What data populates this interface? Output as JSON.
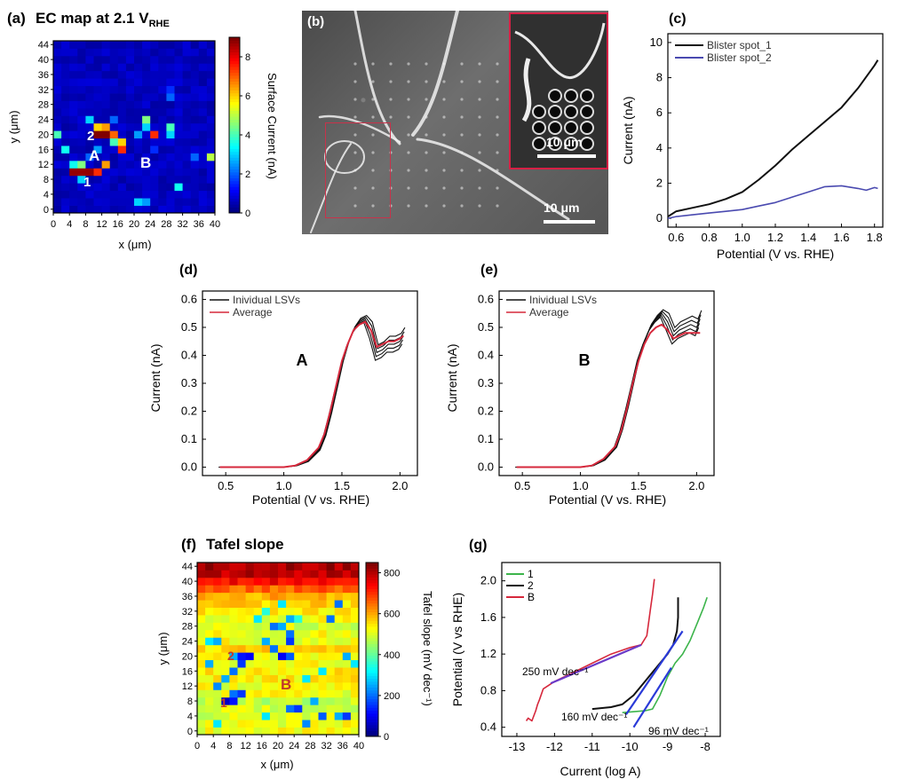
{
  "panels": {
    "a": {
      "letter": "(a)",
      "title": "EC map at 2.1 V",
      "title_sub": "RHE",
      "xlabel": "x (μm)",
      "ylabel": "y (μm)",
      "xticks": [
        "0",
        "4",
        "8",
        "12",
        "16",
        "20",
        "24",
        "28",
        "32",
        "36",
        "40"
      ],
      "yticks": [
        "0",
        "4",
        "8",
        "12",
        "16",
        "20",
        "24",
        "28",
        "32",
        "36",
        "40",
        "44"
      ],
      "colorbar_label": "Surface Current (nA)",
      "colorbar_ticks": [
        "0",
        "2",
        "4",
        "6",
        "8"
      ],
      "annotations": [
        "A",
        "B",
        "1",
        "2"
      ]
    },
    "b": {
      "letter": "(b)",
      "scale_main": "10 μm",
      "scale_inset": "10 μm"
    },
    "c": {
      "letter": "(c)",
      "xlabel": "Potential (V vs. RHE)",
      "ylabel": "Current (nA)",
      "xticks": [
        "0.6",
        "0.8",
        "1.0",
        "1.2",
        "1.4",
        "1.6",
        "1.8"
      ],
      "yticks": [
        "0",
        "2",
        "4",
        "6",
        "8",
        "10"
      ],
      "legend": [
        "Blister spot_1",
        "Blister spot_2"
      ]
    },
    "d": {
      "letter": "(d)",
      "xlabel": "Potential (V vs. RHE)",
      "ylabel": "Current (nA)",
      "xticks": [
        "0.5",
        "1.0",
        "1.5",
        "2.0"
      ],
      "yticks": [
        "0.0",
        "0.1",
        "0.2",
        "0.3",
        "0.4",
        "0.5",
        "0.6"
      ],
      "legend": [
        "Inividual LSVs",
        "Average"
      ],
      "label": "A"
    },
    "e": {
      "letter": "(e)",
      "xlabel": "Potential (V vs. RHE)",
      "ylabel": "Current (nA)",
      "xticks": [
        "0.5",
        "1.0",
        "1.5",
        "2.0"
      ],
      "yticks": [
        "0.0",
        "0.1",
        "0.2",
        "0.3",
        "0.4",
        "0.5",
        "0.6"
      ],
      "legend": [
        "Inividual LSVs",
        "Average"
      ],
      "label": "B"
    },
    "f": {
      "letter": "(f)",
      "title": "Tafel slope",
      "xlabel": "x (μm)",
      "ylabel": "y (μm)",
      "xticks": [
        "0",
        "4",
        "8",
        "12",
        "16",
        "20",
        "24",
        "28",
        "32",
        "36",
        "40"
      ],
      "yticks": [
        "0",
        "4",
        "8",
        "12",
        "16",
        "20",
        "24",
        "28",
        "32",
        "36",
        "40",
        "44"
      ],
      "colorbar_label": "Tafel slope (mV dec⁻¹)",
      "colorbar_ticks": [
        "0",
        "200",
        "400",
        "600",
        "800"
      ],
      "annotations": [
        "B",
        "1",
        "2"
      ]
    },
    "g": {
      "letter": "(g)",
      "xlabel": "Current (log A)",
      "ylabel": "Potential (V vs RHE)",
      "xticks": [
        "-13",
        "-12",
        "-11",
        "-10",
        "-9",
        "-8"
      ],
      "yticks": [
        "0.4",
        "0.8",
        "1.2",
        "1.6",
        "2.0"
      ],
      "legend": [
        "1",
        "2",
        "B"
      ],
      "annotations": [
        "250 mV dec⁻¹",
        "160 mV dec⁻¹",
        "96 mV dec⁻¹"
      ]
    }
  },
  "colors": {
    "black": "#111111",
    "blue": "#4a4ab0",
    "red": "#d6283c",
    "green": "#3cb44b",
    "fit_blue": "#2a3ad8",
    "fit_purple": "#6a3ac8"
  },
  "chart_data": [
    {
      "type": "heatmap",
      "panel": "a",
      "title": "EC map at 2.1 V RHE",
      "xlabel": "x (μm)",
      "ylabel": "y (μm)",
      "grid_step": 2,
      "xlim": [
        0,
        40
      ],
      "ylim": [
        0,
        44
      ],
      "colorbar": {
        "label": "Surface Current (nA)",
        "range": [
          0,
          9
        ]
      },
      "background_value": 0.3,
      "hotspots": [
        [
          4,
          10,
          8.8
        ],
        [
          6,
          10,
          8.8
        ],
        [
          8,
          10,
          8.8
        ],
        [
          10,
          10,
          7.5
        ],
        [
          12,
          12,
          6.5
        ],
        [
          6,
          8,
          3.0
        ],
        [
          10,
          20,
          9.0
        ],
        [
          12,
          20,
          9.0
        ],
        [
          14,
          20,
          7.0
        ],
        [
          10,
          22,
          6.0
        ],
        [
          12,
          22,
          6.5
        ],
        [
          16,
          16,
          7.5
        ],
        [
          16,
          18,
          6.0
        ],
        [
          14,
          18,
          4.0
        ],
        [
          6,
          12,
          4.5
        ],
        [
          2,
          16,
          3.5
        ],
        [
          0,
          20,
          4.0
        ],
        [
          4,
          12,
          3.5
        ],
        [
          10,
          16,
          2.5
        ],
        [
          20,
          20,
          2.5
        ],
        [
          22,
          24,
          4.5
        ],
        [
          24,
          20,
          7.5
        ],
        [
          22,
          22,
          3.0
        ],
        [
          28,
          20,
          3.0
        ],
        [
          28,
          22,
          4.0
        ],
        [
          28,
          30,
          2.0
        ],
        [
          28,
          32,
          1.5
        ],
        [
          30,
          6,
          3.5
        ],
        [
          38,
          14,
          5.0
        ],
        [
          34,
          14,
          2.0
        ],
        [
          8,
          24,
          3.0
        ],
        [
          20,
          2,
          3.0
        ],
        [
          22,
          2,
          2.5
        ],
        [
          24,
          16,
          1.5
        ],
        [
          14,
          24,
          2.0
        ],
        [
          8,
          14,
          2.0
        ]
      ]
    },
    {
      "type": "line",
      "panel": "c",
      "xlabel": "Potential (V vs. RHE)",
      "ylabel": "Current (nA)",
      "xlim": [
        0.55,
        1.85
      ],
      "ylim": [
        -0.5,
        10.5
      ],
      "series": [
        {
          "name": "Blister spot_1",
          "x": [
            0.55,
            0.6,
            0.7,
            0.8,
            0.9,
            1.0,
            1.1,
            1.2,
            1.3,
            1.4,
            1.5,
            1.6,
            1.7,
            1.8,
            1.82
          ],
          "y": [
            0.1,
            0.4,
            0.6,
            0.8,
            1.1,
            1.5,
            2.2,
            3.0,
            3.9,
            4.7,
            5.5,
            6.3,
            7.4,
            8.7,
            9.0
          ]
        },
        {
          "name": "Blister spot_2",
          "x": [
            0.55,
            0.6,
            0.7,
            0.8,
            0.9,
            1.0,
            1.1,
            1.2,
            1.3,
            1.4,
            1.5,
            1.6,
            1.7,
            1.75,
            1.8,
            1.82
          ],
          "y": [
            0.0,
            0.1,
            0.2,
            0.3,
            0.4,
            0.5,
            0.7,
            0.9,
            1.2,
            1.5,
            1.8,
            1.85,
            1.7,
            1.6,
            1.75,
            1.7
          ]
        }
      ]
    },
    {
      "type": "line",
      "panel": "d",
      "xlabel": "Potential (V vs. RHE)",
      "ylabel": "Current (nA)",
      "xlim": [
        0.3,
        2.15
      ],
      "ylim": [
        -0.03,
        0.63
      ],
      "label": "A",
      "series": [
        {
          "name": "Inividual LSVs",
          "x": [
            0.45,
            1.0,
            1.1,
            1.2,
            1.3,
            1.35,
            1.4,
            1.45,
            1.5,
            1.55,
            1.6,
            1.65,
            1.7,
            1.75,
            1.8,
            1.85,
            1.9,
            1.95,
            2.0,
            2.03
          ],
          "y": [
            0.0,
            0.0,
            0.005,
            0.02,
            0.06,
            0.11,
            0.19,
            0.28,
            0.37,
            0.44,
            0.49,
            0.52,
            0.53,
            0.49,
            0.41,
            0.42,
            0.44,
            0.44,
            0.45,
            0.47
          ]
        },
        {
          "name": "Average",
          "x": [
            0.45,
            1.0,
            1.1,
            1.2,
            1.3,
            1.35,
            1.4,
            1.45,
            1.5,
            1.55,
            1.6,
            1.65,
            1.7,
            1.75,
            1.8,
            1.85,
            1.9,
            1.95,
            2.0,
            2.03
          ],
          "y": [
            0.0,
            0.0,
            0.006,
            0.025,
            0.07,
            0.12,
            0.2,
            0.29,
            0.38,
            0.44,
            0.49,
            0.51,
            0.52,
            0.49,
            0.43,
            0.44,
            0.45,
            0.45,
            0.46,
            0.47
          ]
        }
      ]
    },
    {
      "type": "line",
      "panel": "e",
      "xlabel": "Potential (V vs. RHE)",
      "ylabel": "Current (nA)",
      "xlim": [
        0.3,
        2.15
      ],
      "ylim": [
        -0.03,
        0.63
      ],
      "label": "B",
      "series": [
        {
          "name": "Inividual LSVs",
          "x": [
            0.45,
            1.0,
            1.1,
            1.2,
            1.3,
            1.35,
            1.4,
            1.45,
            1.5,
            1.55,
            1.6,
            1.65,
            1.7,
            1.75,
            1.8,
            1.85,
            1.9,
            1.95,
            2.0,
            2.03
          ],
          "y": [
            0.0,
            0.0,
            0.005,
            0.025,
            0.07,
            0.13,
            0.21,
            0.3,
            0.39,
            0.45,
            0.5,
            0.53,
            0.55,
            0.52,
            0.47,
            0.49,
            0.5,
            0.51,
            0.5,
            0.53
          ]
        },
        {
          "name": "Average",
          "x": [
            0.45,
            1.0,
            1.1,
            1.2,
            1.3,
            1.35,
            1.4,
            1.45,
            1.5,
            1.55,
            1.6,
            1.65,
            1.7,
            1.75,
            1.8,
            1.85,
            1.9,
            1.95,
            2.0,
            2.03
          ],
          "y": [
            0.0,
            0.0,
            0.006,
            0.03,
            0.075,
            0.13,
            0.21,
            0.3,
            0.38,
            0.44,
            0.48,
            0.5,
            0.51,
            0.49,
            0.46,
            0.47,
            0.48,
            0.48,
            0.48,
            0.48
          ]
        }
      ]
    },
    {
      "type": "heatmap",
      "panel": "f",
      "title": "Tafel slope",
      "xlabel": "x (μm)",
      "ylabel": "y (μm)",
      "grid_step": 2,
      "xlim": [
        0,
        40
      ],
      "ylim": [
        0,
        44
      ],
      "colorbar": {
        "label": "Tafel slope (mV dec⁻¹)",
        "range": [
          0,
          850
        ]
      },
      "row_base_values": [
        520,
        520,
        500,
        500,
        480,
        520,
        520,
        540,
        540,
        520,
        520,
        560,
        520,
        520,
        500,
        520,
        540,
        560,
        600,
        660,
        750,
        800,
        820
      ],
      "low_patches": [
        [
          6,
          8,
          60
        ],
        [
          8,
          8,
          120
        ],
        [
          8,
          10,
          200
        ],
        [
          10,
          10,
          150
        ],
        [
          4,
          12,
          220
        ],
        [
          6,
          14,
          250
        ],
        [
          8,
          16,
          200
        ],
        [
          10,
          18,
          150
        ],
        [
          10,
          20,
          120
        ],
        [
          12,
          20,
          100
        ],
        [
          8,
          20,
          250
        ],
        [
          20,
          20,
          100
        ],
        [
          22,
          20,
          180
        ],
        [
          18,
          22,
          200
        ],
        [
          16,
          24,
          250
        ],
        [
          22,
          24,
          150
        ],
        [
          22,
          26,
          200
        ],
        [
          20,
          28,
          250
        ],
        [
          18,
          28,
          200
        ],
        [
          22,
          30,
          250
        ],
        [
          24,
          30,
          350
        ],
        [
          14,
          30,
          300
        ],
        [
          16,
          32,
          350
        ],
        [
          4,
          24,
          250
        ],
        [
          2,
          24,
          300
        ],
        [
          32,
          30,
          200
        ],
        [
          36,
          20,
          250
        ],
        [
          38,
          18,
          300
        ],
        [
          30,
          16,
          300
        ],
        [
          26,
          14,
          300
        ],
        [
          22,
          6,
          200
        ],
        [
          24,
          6,
          150
        ],
        [
          26,
          2,
          220
        ],
        [
          28,
          8,
          250
        ],
        [
          34,
          4,
          250
        ],
        [
          36,
          4,
          150
        ],
        [
          30,
          4,
          180
        ],
        [
          4,
          2,
          300
        ],
        [
          2,
          18,
          250
        ],
        [
          16,
          4,
          300
        ],
        [
          40,
          40,
          100
        ],
        [
          34,
          34,
          200
        ],
        [
          20,
          34,
          300
        ]
      ]
    },
    {
      "type": "line",
      "panel": "g",
      "xlabel": "Current (log A)",
      "ylabel": "Potential (V vs RHE)",
      "xlim": [
        -13.4,
        -7.6
      ],
      "ylim": [
        0.3,
        2.2
      ],
      "series": [
        {
          "name": "1",
          "x": [
            -10.2,
            -9.6,
            -9.4,
            -9.2,
            -9.0,
            -8.8,
            -8.6,
            -8.4,
            -8.2,
            -8.05,
            -7.95
          ],
          "y": [
            0.56,
            0.58,
            0.6,
            0.75,
            0.95,
            1.1,
            1.2,
            1.35,
            1.55,
            1.7,
            1.82
          ]
        },
        {
          "name": "2",
          "x": [
            -11.0,
            -10.5,
            -10.2,
            -9.9,
            -9.6,
            -9.3,
            -9.0,
            -8.85,
            -8.75,
            -8.72,
            -8.72
          ],
          "y": [
            0.6,
            0.62,
            0.65,
            0.75,
            0.9,
            1.05,
            1.2,
            1.3,
            1.45,
            1.6,
            1.82
          ]
        },
        {
          "name": "B",
          "x": [
            -12.75,
            -12.7,
            -12.6,
            -12.5,
            -12.45,
            -12.4,
            -12.3,
            -12.0,
            -11.5,
            -11.0,
            -10.5,
            -10.0,
            -9.7,
            -9.55,
            -9.5,
            -9.45,
            -9.4,
            -9.35
          ],
          "y": [
            0.47,
            0.5,
            0.47,
            0.58,
            0.65,
            0.7,
            0.82,
            0.9,
            1.0,
            1.1,
            1.2,
            1.27,
            1.3,
            1.4,
            1.55,
            1.7,
            1.85,
            2.02
          ]
        }
      ],
      "fits": [
        {
          "label": "250 mV dec⁻¹",
          "x": [
            -12.1,
            -9.7
          ],
          "y": [
            0.88,
            1.3
          ]
        },
        {
          "label": "160 mV dec⁻¹",
          "x": [
            -10.1,
            -8.6
          ],
          "y": [
            0.54,
            1.45
          ]
        },
        {
          "label": "96 mV dec⁻¹",
          "x": [
            -9.9,
            -8.9
          ],
          "y": [
            0.4,
            1.05
          ]
        }
      ]
    }
  ]
}
